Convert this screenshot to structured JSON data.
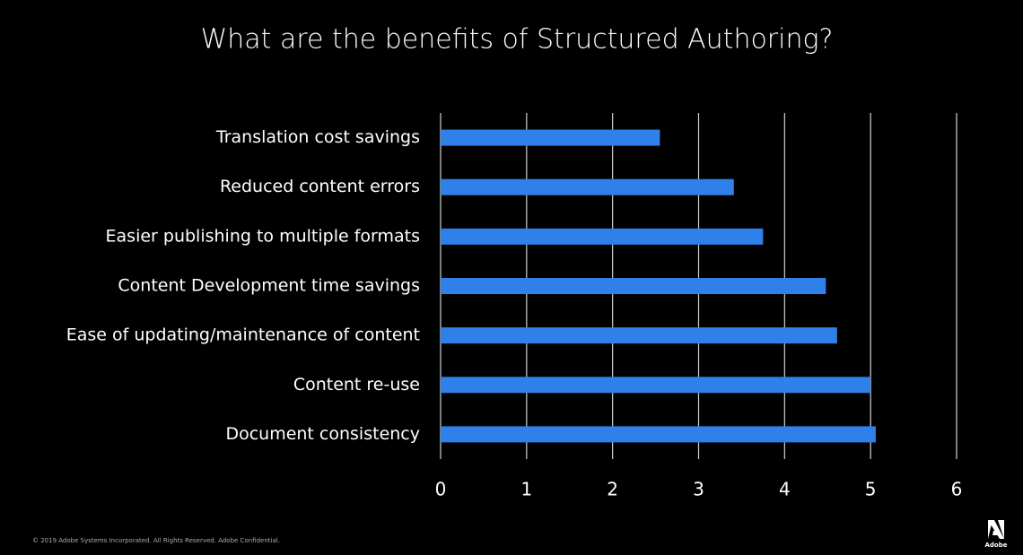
{
  "chart_data": {
    "type": "bar",
    "orientation": "horizontal",
    "title": "What are the benefits of Structured Authoring?",
    "categories": [
      "Translation cost savings",
      "Reduced content errors",
      "Easier publishing to multiple formats",
      "Content Development time savings",
      "Ease of updating/maintenance of content",
      "Content re-use",
      "Document consistency"
    ],
    "values": [
      2.55,
      3.41,
      3.75,
      4.48,
      4.61,
      5.0,
      5.06
    ],
    "color": "#2f80e8",
    "xlim": [
      0,
      6
    ],
    "xticks": [
      0,
      1,
      2,
      3,
      4,
      5,
      6
    ],
    "grid": true
  },
  "footer": {
    "copyright": "© 2019 Adobe Systems Incorporated.  All Rights Reserved.  Adobe Confidential.",
    "brand": "Adobe"
  }
}
